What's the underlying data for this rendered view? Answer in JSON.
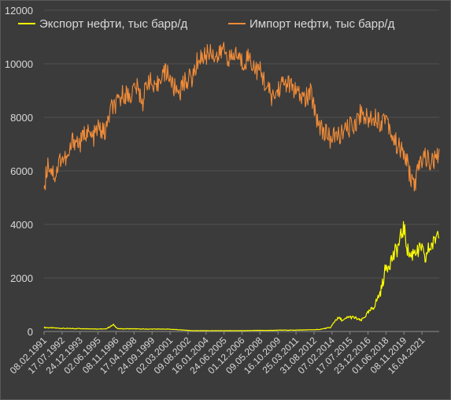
{
  "chart_data": {
    "type": "line",
    "title": "",
    "xlabel": "",
    "ylabel": "",
    "ylim": [
      0,
      12000
    ],
    "y_ticks": [
      "0",
      "2000",
      "4000",
      "6000",
      "8000",
      "10000",
      "12000"
    ],
    "x_tick_labels": [
      "08.02.1991",
      "17.07.1992",
      "24.12.1993",
      "02.06.1995",
      "08.11.1996",
      "17.04.1998",
      "24.09.1999",
      "02.03.2001",
      "09.08.2002",
      "16.01.2004",
      "24.06.2005",
      "01.12.2006",
      "09.05.2008",
      "16.10.2009",
      "25.03.2011",
      "31.08.2012",
      "07.02.2014",
      "17.07.2015",
      "23.12.2016",
      "01.06.2018",
      "08.11.2019",
      "16.04.2021"
    ],
    "x_range": [
      "1991-02-08",
      "2022-08-31"
    ],
    "grid": "horizontal",
    "legend_position": "top",
    "series": [
      {
        "name": "Экспорт нефти, тыс барр/д",
        "color": "#ffff00",
        "x": [
          "1991-02",
          "1992-01",
          "1993-01",
          "1994-01",
          "1995-01",
          "1996-01",
          "1996-09",
          "1997-01",
          "1998-01",
          "1999-01",
          "2000-01",
          "2001-01",
          "2002-01",
          "2003-01",
          "2004-01",
          "2005-01",
          "2006-01",
          "2007-01",
          "2008-01",
          "2009-01",
          "2010-01",
          "2011-01",
          "2012-01",
          "2013-01",
          "2014-01",
          "2014-06",
          "2014-09",
          "2015-01",
          "2015-06",
          "2016-01",
          "2016-06",
          "2017-01",
          "2017-06",
          "2018-01",
          "2018-06",
          "2019-01",
          "2019-06",
          "2019-11",
          "2020-03",
          "2020-06",
          "2020-10",
          "2021-01",
          "2021-04",
          "2021-07",
          "2021-10",
          "2022-01",
          "2022-04",
          "2022-08"
        ],
        "values": [
          150,
          130,
          110,
          110,
          100,
          90,
          250,
          100,
          100,
          90,
          90,
          90,
          60,
          30,
          30,
          30,
          30,
          30,
          40,
          40,
          50,
          50,
          60,
          70,
          150,
          450,
          500,
          400,
          550,
          500,
          400,
          700,
          900,
          1500,
          2400,
          2800,
          3200,
          3900,
          3000,
          2800,
          3100,
          2900,
          3200,
          2600,
          3000,
          3200,
          3300,
          3800
        ]
      },
      {
        "name": "Импорт нефти, тыс барр/д",
        "color": "#f28c38",
        "x": [
          "1991-02",
          "1991-06",
          "1992-01",
          "1992-06",
          "1993-01",
          "1993-06",
          "1994-01",
          "1994-06",
          "1995-01",
          "1995-06",
          "1996-01",
          "1996-06",
          "1997-01",
          "1997-06",
          "1998-01",
          "1998-06",
          "1999-01",
          "1999-06",
          "2000-01",
          "2000-06",
          "2001-01",
          "2001-06",
          "2002-01",
          "2002-06",
          "2003-01",
          "2003-06",
          "2004-01",
          "2004-06",
          "2005-01",
          "2005-06",
          "2006-01",
          "2006-06",
          "2007-01",
          "2007-06",
          "2008-01",
          "2008-06",
          "2009-01",
          "2009-06",
          "2010-01",
          "2010-06",
          "2011-01",
          "2011-06",
          "2012-01",
          "2012-06",
          "2013-01",
          "2013-06",
          "2014-01",
          "2014-06",
          "2015-01",
          "2015-06",
          "2016-01",
          "2016-06",
          "2017-01",
          "2017-06",
          "2018-01",
          "2018-06",
          "2019-01",
          "2019-06",
          "2020-01",
          "2020-06",
          "2020-10",
          "2021-01",
          "2021-06",
          "2022-01",
          "2022-08"
        ],
        "values": [
          5300,
          6300,
          5800,
          6500,
          6400,
          7200,
          7000,
          7500,
          7200,
          7600,
          7400,
          8300,
          8500,
          8900,
          8800,
          9200,
          8600,
          9500,
          8900,
          9600,
          9700,
          9100,
          9000,
          9400,
          9500,
          10200,
          10300,
          10500,
          10200,
          10600,
          10100,
          10400,
          10000,
          10300,
          9800,
          9700,
          9000,
          8700,
          9200,
          9300,
          9100,
          8800,
          8700,
          8900,
          7800,
          7500,
          7200,
          7300,
          7400,
          7600,
          7800,
          8200,
          7900,
          8100,
          7800,
          8100,
          7200,
          6900,
          6500,
          5700,
          5500,
          6100,
          6600,
          6300,
          6500
        ]
      }
    ]
  }
}
